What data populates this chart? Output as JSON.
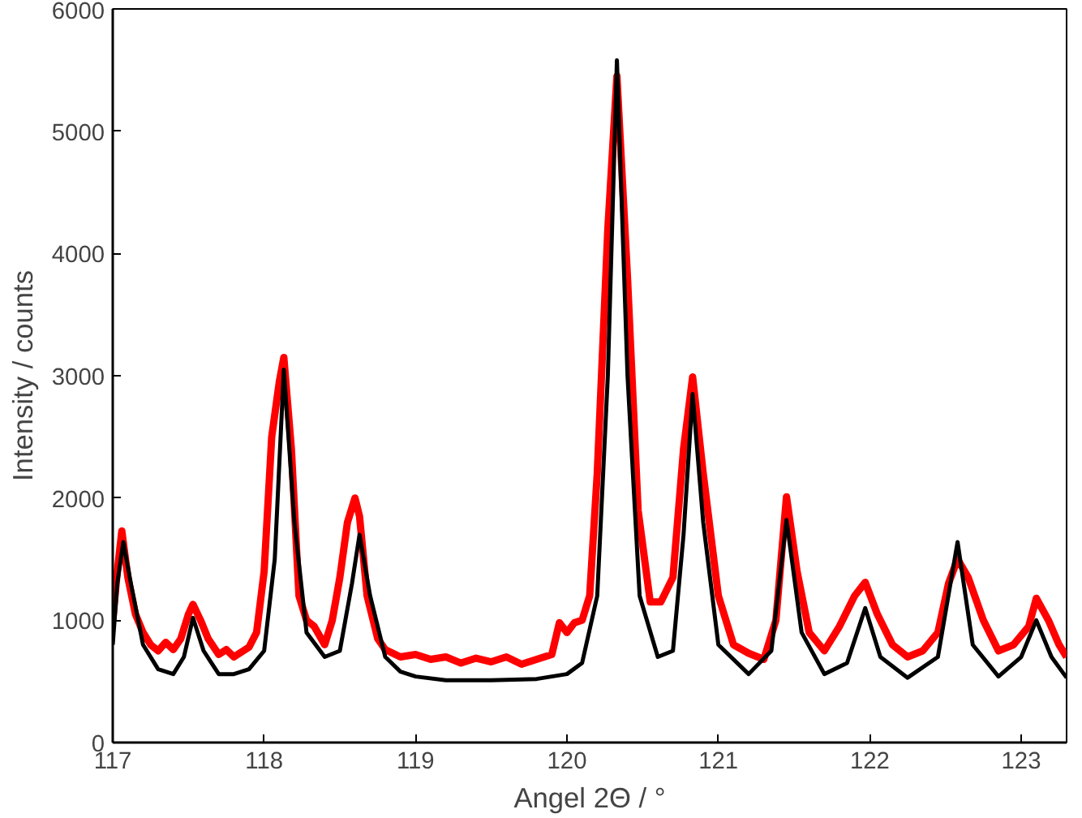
{
  "chart_data": {
    "type": "line",
    "xlabel": "Angel 2Θ / °",
    "ylabel": "Intensity / counts",
    "xlim": [
      117,
      123.3
    ],
    "ylim": [
      0,
      6000
    ],
    "xticks": [
      117,
      118,
      119,
      120,
      121,
      122,
      123
    ],
    "yticks": [
      0,
      1000,
      2000,
      3000,
      4000,
      5000,
      6000
    ],
    "grid": false,
    "series": [
      {
        "color": "#ff0000",
        "x": [
          117.0,
          117.03,
          117.06,
          117.1,
          117.15,
          117.2,
          117.25,
          117.3,
          117.35,
          117.4,
          117.45,
          117.5,
          117.53,
          117.58,
          117.63,
          117.7,
          117.75,
          117.8,
          117.85,
          117.9,
          117.95,
          118.0,
          118.05,
          118.1,
          118.13,
          118.18,
          118.23,
          118.28,
          118.33,
          118.4,
          118.45,
          118.5,
          118.55,
          118.6,
          118.63,
          118.68,
          118.75,
          118.8,
          118.9,
          119.0,
          119.1,
          119.2,
          119.3,
          119.4,
          119.5,
          119.6,
          119.7,
          119.8,
          119.9,
          119.95,
          120.0,
          120.05,
          120.1,
          120.15,
          120.2,
          120.27,
          120.33,
          120.4,
          120.47,
          120.55,
          120.62,
          120.7,
          120.77,
          120.83,
          120.9,
          121.0,
          121.1,
          121.2,
          121.3,
          121.38,
          121.45,
          121.52,
          121.6,
          121.7,
          121.8,
          121.9,
          121.97,
          122.05,
          122.15,
          122.25,
          122.35,
          122.45,
          122.52,
          122.58,
          122.65,
          122.75,
          122.85,
          122.95,
          123.05,
          123.1,
          123.18,
          123.25,
          123.3
        ],
        "values": [
          1000,
          1400,
          1730,
          1350,
          1050,
          900,
          800,
          750,
          820,
          760,
          850,
          1050,
          1130,
          1000,
          850,
          720,
          760,
          700,
          740,
          780,
          900,
          1400,
          2500,
          2950,
          3150,
          2400,
          1200,
          1000,
          950,
          800,
          1000,
          1350,
          1800,
          2000,
          1850,
          1200,
          850,
          760,
          700,
          720,
          680,
          700,
          650,
          690,
          660,
          700,
          640,
          680,
          720,
          980,
          900,
          980,
          1000,
          1200,
          2200,
          4200,
          5450,
          3800,
          1900,
          1150,
          1150,
          1350,
          2400,
          2990,
          2200,
          1200,
          800,
          730,
          680,
          1000,
          2010,
          1400,
          900,
          750,
          950,
          1200,
          1310,
          1050,
          800,
          700,
          750,
          900,
          1300,
          1500,
          1350,
          1000,
          750,
          800,
          950,
          1180,
          1000,
          800,
          700
        ]
      },
      {
        "color": "#000000",
        "x": [
          117.0,
          117.03,
          117.07,
          117.12,
          117.2,
          117.3,
          117.4,
          117.47,
          117.53,
          117.6,
          117.7,
          117.8,
          117.9,
          118.0,
          118.07,
          118.13,
          118.2,
          118.28,
          118.4,
          118.5,
          118.58,
          118.63,
          118.7,
          118.8,
          118.9,
          119.0,
          119.2,
          119.5,
          119.8,
          120.0,
          120.1,
          120.2,
          120.27,
          120.33,
          120.4,
          120.48,
          120.6,
          120.7,
          120.77,
          120.83,
          120.9,
          121.0,
          121.2,
          121.35,
          121.45,
          121.55,
          121.7,
          121.85,
          121.97,
          122.07,
          122.25,
          122.45,
          122.58,
          122.68,
          122.85,
          123.0,
          123.1,
          123.2,
          123.3
        ],
        "values": [
          800,
          1300,
          1640,
          1300,
          800,
          600,
          560,
          700,
          1020,
          750,
          560,
          560,
          600,
          750,
          1500,
          3050,
          1800,
          900,
          700,
          750,
          1300,
          1700,
          1200,
          700,
          580,
          540,
          510,
          510,
          520,
          560,
          650,
          1200,
          3000,
          5580,
          3000,
          1200,
          700,
          750,
          1700,
          2850,
          1800,
          800,
          560,
          750,
          1820,
          900,
          560,
          650,
          1100,
          700,
          530,
          700,
          1640,
          800,
          540,
          700,
          1000,
          700,
          530
        ]
      }
    ]
  }
}
